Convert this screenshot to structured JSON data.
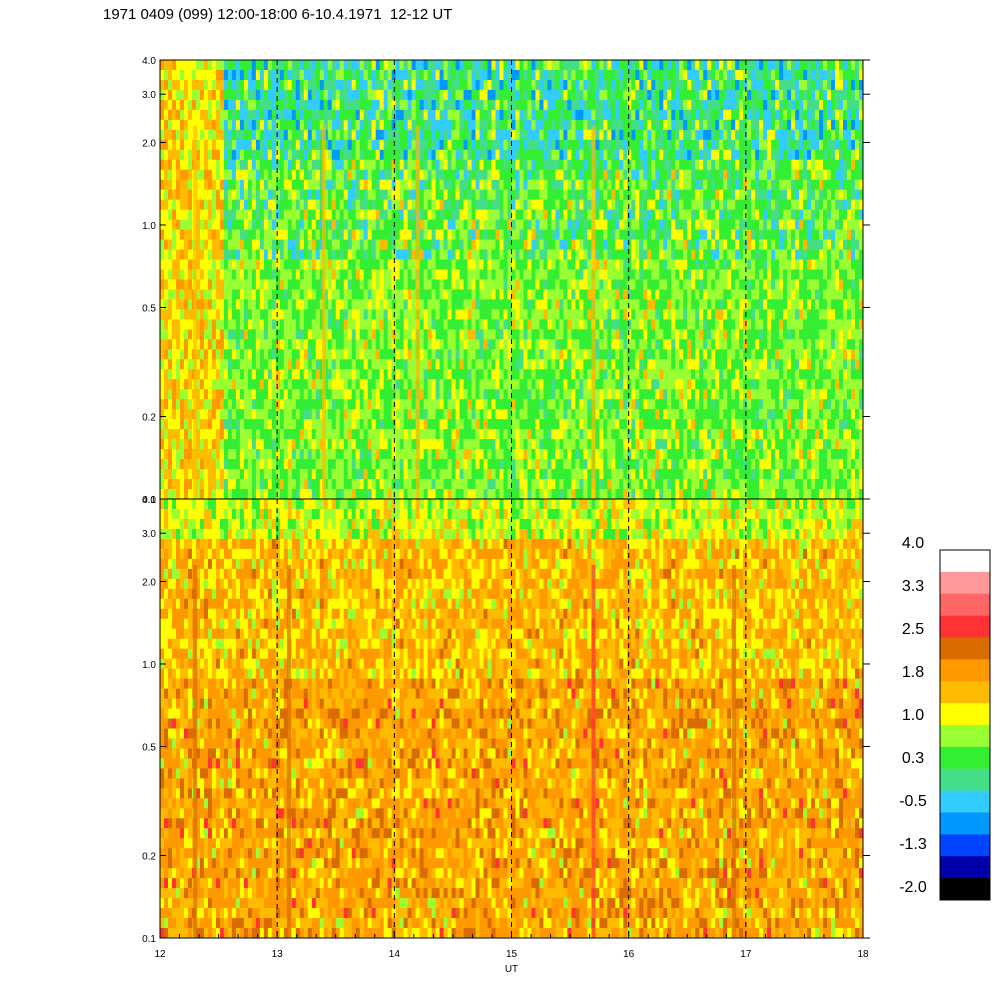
{
  "title": "1971 0409 (099) 12:00-18:00 6-10.4.1971  12-12 UT",
  "chart_data": [
    {
      "type": "heatmap",
      "panel": "upper",
      "dominant_level": "0.3 to 1.0 (green / yellow-green)",
      "x": [
        12,
        18
      ],
      "ylim": [
        0.1,
        4.0
      ],
      "y_scale": "log",
      "y_ticks": [
        0.1,
        0.2,
        0.5,
        1.0,
        2.0,
        3.0,
        4.0
      ],
      "y_tick_labels": [
        "0.1",
        "0.2",
        "0.5",
        "1.0",
        "2.0",
        "3.0",
        "4.0"
      ]
    },
    {
      "type": "heatmap",
      "panel": "lower",
      "dominant_level": "1.0 to 2.5 (yellow / orange)",
      "x": [
        12,
        18
      ],
      "ylim": [
        0.1,
        4.0
      ],
      "y_scale": "log",
      "y_ticks": [
        0.1,
        0.2,
        0.5,
        1.0,
        2.0,
        3.0,
        4.0
      ],
      "y_tick_labels": [
        "0.1",
        "0.2",
        "0.5",
        "1.0",
        "2.0",
        "3.0",
        "4.0"
      ]
    }
  ],
  "x_axis": {
    "label": "UT",
    "ticks": [
      12,
      13,
      14,
      15,
      16,
      17,
      18
    ],
    "tick_labels": [
      "12",
      "13",
      "14",
      "15",
      "16",
      "17",
      "18"
    ],
    "dashed_hour_lines": [
      13,
      14,
      15,
      16,
      17
    ]
  },
  "colorbar": {
    "levels_top_to_bottom": [
      "#ffffff",
      "#ff9999",
      "#ff6666",
      "#ff3333",
      "#d96c00",
      "#ff9900",
      "#ffbb00",
      "#ffff00",
      "#99ff33",
      "#33ee33",
      "#44dd88",
      "#33ccff",
      "#0099ff",
      "#0044ff",
      "#0000aa",
      "#000000"
    ],
    "labels": [
      "4.0",
      "3.3",
      "2.5",
      "1.8",
      "1.0",
      "0.3",
      "-0.5",
      "-1.3",
      "-2.0"
    ]
  }
}
